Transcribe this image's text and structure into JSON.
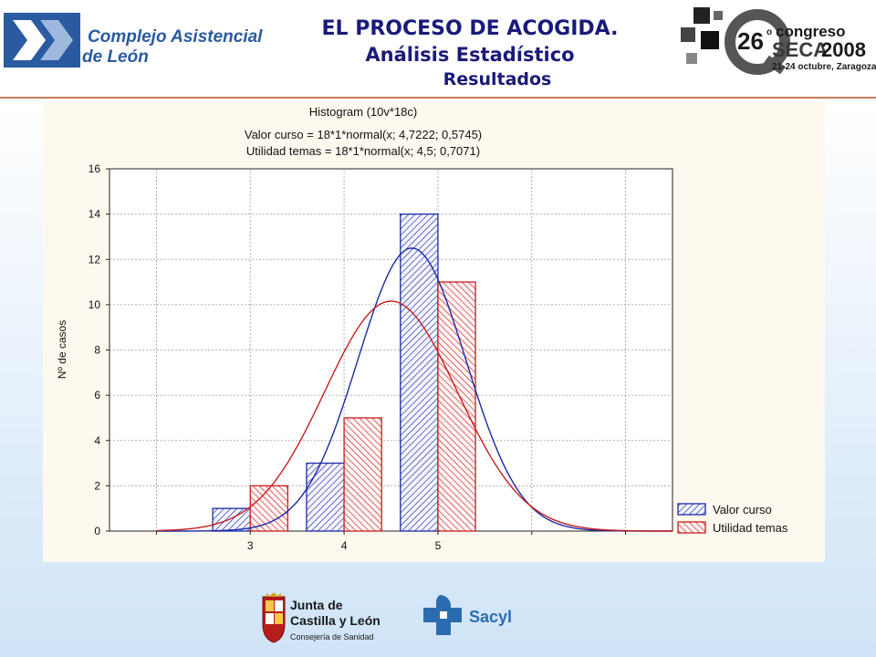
{
  "header": {
    "title": "EL PROCESO DE ACOGIDA.",
    "subtitle": "Análisis Estadístico",
    "section": "Resultados"
  },
  "logos": {
    "left": {
      "line1": "Complejo Asistencial",
      "line2": "de León",
      "color": "#2a5aa0"
    },
    "right": {
      "number": "26",
      "superscript": "o",
      "word": "congreso",
      "brand": "SECA",
      "year": "2008",
      "dates": "21-24 octubre, Zaragoza"
    },
    "footer_left": {
      "line1": "Junta de",
      "line2": "Castilla y León",
      "line3": "Consejería de Sanidad"
    },
    "footer_right": {
      "name": "Sacyl",
      "color": "#2b6cb0"
    }
  },
  "chart_data": {
    "type": "bar",
    "title": "Histogram (10v*18c)",
    "subtitle_lines": [
      "Valor curso = 18*1*normal(x; 4,7222; 0,5745)",
      "Utilidad temas = 18*1*normal(x; 4,5; 0,7071)"
    ],
    "xlabel": "",
    "ylabel": "Nº de casos",
    "categories": [
      "3",
      "4",
      "5"
    ],
    "x_range": [
      1.5,
      7.5
    ],
    "ylim": [
      0,
      16
    ],
    "yticks": [
      0,
      2,
      4,
      6,
      8,
      10,
      12,
      14,
      16
    ],
    "grid": true,
    "legend_position": "bottom-right",
    "series": [
      {
        "name": "Valor curso",
        "values": [
          1,
          3,
          14
        ],
        "color": "#1a2aa8",
        "curve": {
          "mean": 4.7222,
          "sd": 0.5745,
          "scale": 18
        }
      },
      {
        "name": "Utilidad temas",
        "values": [
          2,
          5,
          11
        ],
        "color": "#c81e1e",
        "curve": {
          "mean": 4.5,
          "sd": 0.7071,
          "scale": 18
        }
      }
    ]
  }
}
